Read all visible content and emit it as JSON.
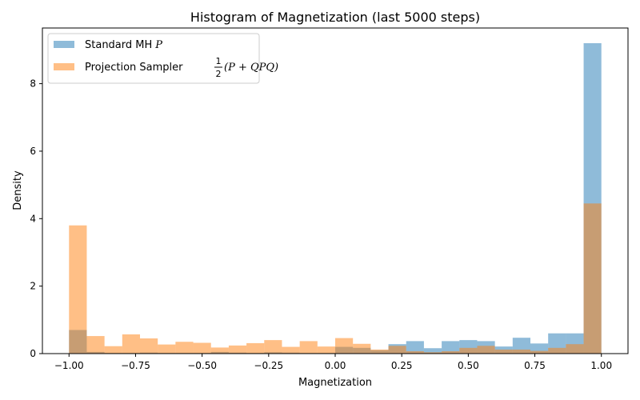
{
  "chart_data": {
    "type": "bar",
    "title": "Histogram of Magnetization (last 5000 steps)",
    "xlabel": "Magnetization",
    "ylabel": "Density",
    "xlim": [
      -1.1,
      1.1
    ],
    "ylim": [
      0,
      9.65
    ],
    "xticks": [
      -1.0,
      -0.75,
      -0.5,
      -0.25,
      0.0,
      0.25,
      0.5,
      0.75,
      1.0
    ],
    "xtick_labels": [
      "−1.00",
      "−0.75",
      "−0.50",
      "−0.25",
      "0.00",
      "0.25",
      "0.50",
      "0.75",
      "1.00"
    ],
    "yticks": [
      0,
      2,
      4,
      6,
      8
    ],
    "ytick_labels": [
      "0",
      "2",
      "4",
      "6",
      "8"
    ],
    "legend_position": "top-left",
    "bins": 30,
    "bin_range": [
      -1.0,
      1.0
    ],
    "colors": {
      "standard": "#1f77b4",
      "projection": "#ff7f0e"
    },
    "series": [
      {
        "name": "Standard MH",
        "name_math": "P",
        "alpha": 0.5,
        "values": [
          0.7,
          0.05,
          0.02,
          0.02,
          0.03,
          0.02,
          0.02,
          0.02,
          0.05,
          0.03,
          0.02,
          0.04,
          0.03,
          0.02,
          0.02,
          0.2,
          0.17,
          0.1,
          0.28,
          0.37,
          0.16,
          0.37,
          0.4,
          0.37,
          0.21,
          0.47,
          0.3,
          0.6,
          0.6,
          9.2
        ]
      },
      {
        "name": "Projection Sampler",
        "name_math": "(P + QPQ)",
        "name_frac": [
          "1",
          "2"
        ],
        "alpha": 0.5,
        "values": [
          3.8,
          0.52,
          0.22,
          0.57,
          0.45,
          0.27,
          0.35,
          0.32,
          0.18,
          0.24,
          0.31,
          0.4,
          0.2,
          0.37,
          0.21,
          0.46,
          0.29,
          0.12,
          0.23,
          0.07,
          0.04,
          0.07,
          0.17,
          0.23,
          0.12,
          0.12,
          0.08,
          0.17,
          0.28,
          4.45
        ]
      }
    ]
  }
}
